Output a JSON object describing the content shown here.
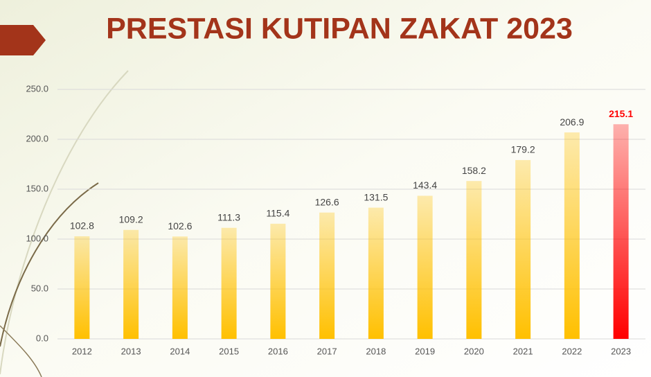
{
  "chart_data": {
    "type": "bar",
    "title": "PRESTASI KUTIPAN ZAKAT 2023",
    "categories": [
      "2012",
      "2013",
      "2014",
      "2015",
      "2016",
      "2017",
      "2018",
      "2019",
      "2020",
      "2021",
      "2022",
      "2023"
    ],
    "values": [
      102.8,
      109.2,
      102.6,
      111.3,
      115.4,
      126.6,
      131.5,
      143.4,
      158.2,
      179.2,
      206.9,
      215.1
    ],
    "color": "#ffc000",
    "highlight": {
      "index": 11,
      "color": "#ff0000"
    },
    "ylim": [
      0,
      250
    ],
    "yticks": [
      {
        "value": 0,
        "label": "0.0"
      },
      {
        "value": 50,
        "label": "50.0"
      },
      {
        "value": 100,
        "label": "100.0"
      },
      {
        "value": 150,
        "label": "150.0"
      },
      {
        "value": 200,
        "label": "200.0"
      },
      {
        "value": 250,
        "label": "250.0"
      }
    ],
    "grid": true
  }
}
